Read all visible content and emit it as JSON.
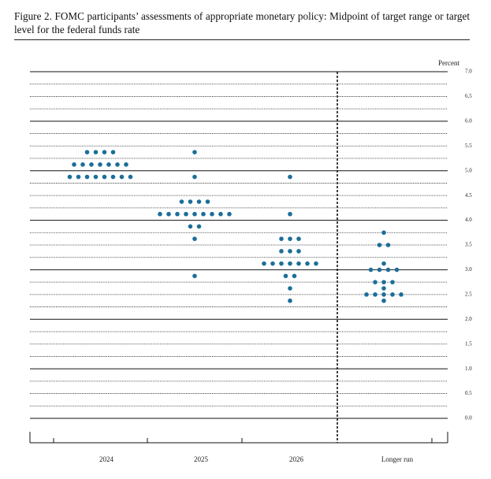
{
  "chart_data": {
    "type": "dot",
    "title": "Figure 2. FOMC participants’ assessments of appropriate monetary policy: Midpoint of target range or target level for the federal funds rate",
    "ylabel": "Percent",
    "categories": [
      "2024",
      "2025",
      "2026",
      "Longer run"
    ],
    "dots": [
      [
        5.375,
        5.375,
        5.375,
        5.375,
        5.125,
        5.125,
        5.125,
        5.125,
        5.125,
        5.125,
        5.125,
        4.875,
        4.875,
        4.875,
        4.875,
        4.875,
        4.875,
        4.875,
        4.875
      ],
      [
        5.375,
        4.875,
        4.375,
        4.375,
        4.375,
        4.375,
        4.125,
        4.125,
        4.125,
        4.125,
        4.125,
        4.125,
        4.125,
        4.125,
        4.125,
        3.875,
        3.875,
        3.625,
        2.875
      ],
      [
        4.875,
        4.125,
        3.625,
        3.625,
        3.625,
        3.375,
        3.375,
        3.375,
        3.125,
        3.125,
        3.125,
        3.125,
        3.125,
        3.125,
        3.125,
        2.875,
        2.875,
        2.625,
        2.375
      ],
      [
        3.75,
        3.5,
        3.5,
        3.125,
        3.0,
        3.0,
        3.0,
        3.0,
        2.75,
        2.75,
        2.75,
        2.625,
        2.5,
        2.5,
        2.5,
        2.5,
        2.5,
        2.375
      ]
    ],
    "color": "#1c6e99",
    "ylim": [
      0,
      7
    ],
    "yticks": [
      {
        "value": 0,
        "label": "0.0"
      },
      {
        "value": 0.5,
        "label": "0.5"
      },
      {
        "value": 1,
        "label": "1.0"
      },
      {
        "value": 1.5,
        "label": "1.5"
      },
      {
        "value": 2,
        "label": "2.0"
      },
      {
        "value": 2.5,
        "label": "2.5"
      },
      {
        "value": 3,
        "label": "3.0"
      },
      {
        "value": 3.5,
        "label": "3.5"
      },
      {
        "value": 4,
        "label": "4.0"
      },
      {
        "value": 4.5,
        "label": "4.5"
      },
      {
        "value": 5,
        "label": "5.0"
      },
      {
        "value": 5.5,
        "label": "5.5"
      },
      {
        "value": 6,
        "label": "6.0"
      },
      {
        "value": 6.5,
        "label": "6.5"
      },
      {
        "value": 7,
        "label": "7.0"
      }
    ],
    "minor_yticks": [
      0.25,
      0.75,
      1.25,
      1.75,
      2.25,
      2.75,
      3.25,
      3.75,
      4.25,
      4.75,
      5.25,
      5.75,
      6.25,
      6.75
    ],
    "grid": true
  }
}
